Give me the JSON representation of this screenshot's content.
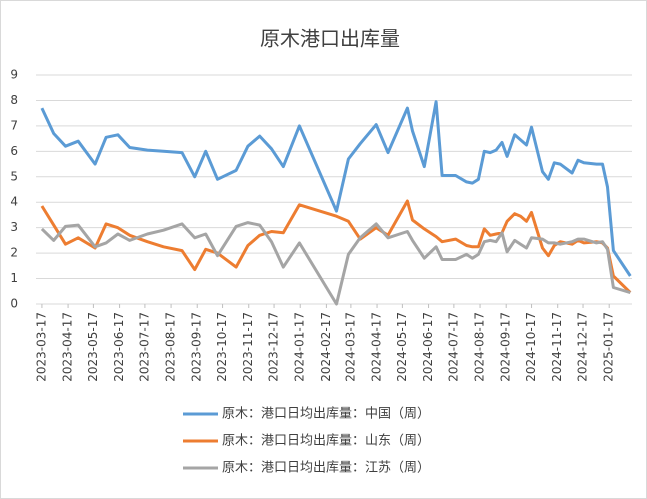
{
  "chart_data": {
    "type": "line",
    "title": "原木港口出库量",
    "x": [
      "2023-03-17",
      "2023-03-31",
      "2023-04-14",
      "2023-04-29",
      "2023-05-19",
      "2023-06-01",
      "2023-06-15",
      "2023-06-29",
      "2023-07-20",
      "2023-08-08",
      "2023-08-30",
      "2023-09-14",
      "2023-09-27",
      "2023-10-11",
      "2023-11-02",
      "2023-11-16",
      "2023-11-30",
      "2023-12-14",
      "2023-12-28",
      "2024-01-16",
      "2024-02-29",
      "2024-03-14",
      "2024-03-28",
      "2024-04-16",
      "2024-04-30",
      "2024-05-23",
      "2024-05-29",
      "2024-06-12",
      "2024-06-26",
      "2024-07-03",
      "2024-07-19",
      "2024-08-01",
      "2024-08-08",
      "2024-08-15",
      "2024-08-22",
      "2024-08-29",
      "2024-09-05",
      "2024-09-12",
      "2024-09-18",
      "2024-09-27",
      "2024-10-04",
      "2024-10-11",
      "2024-10-17",
      "2024-10-30",
      "2024-11-06",
      "2024-11-13",
      "2024-11-20",
      "2024-12-04",
      "2024-12-11",
      "2024-12-18",
      "2025-01-02",
      "2025-01-09",
      "2025-01-15",
      "2025-01-22",
      "2025-02-11"
    ],
    "series": [
      {
        "name": "原木：港口日均出库量：中国（周）",
        "color": "#5b9bd5",
        "values": [
          7.7,
          6.7,
          6.2,
          6.4,
          5.5,
          6.55,
          6.65,
          6.15,
          6.05,
          6.0,
          5.95,
          5.0,
          6.0,
          4.9,
          5.25,
          6.2,
          6.6,
          6.1,
          5.4,
          7.0,
          3.65,
          5.7,
          6.3,
          7.05,
          5.95,
          7.7,
          6.8,
          5.4,
          7.95,
          5.05,
          5.05,
          4.8,
          4.75,
          4.9,
          6.0,
          5.95,
          6.05,
          6.35,
          5.8,
          6.65,
          6.45,
          6.25,
          6.95,
          5.2,
          4.9,
          5.55,
          5.5,
          5.15,
          5.65,
          5.55,
          5.5,
          5.5,
          4.6,
          2.1,
          1.1
        ]
      },
      {
        "name": "原木：港口日均出库量：山东（周）",
        "color": "#ed7d31",
        "values": [
          3.85,
          3.1,
          2.35,
          2.6,
          2.2,
          3.15,
          3.0,
          2.7,
          2.45,
          2.25,
          2.1,
          1.35,
          2.15,
          2.0,
          1.45,
          2.3,
          2.7,
          2.85,
          2.8,
          3.9,
          3.45,
          3.25,
          2.55,
          3.0,
          2.7,
          4.05,
          3.3,
          2.95,
          2.65,
          2.45,
          2.55,
          2.3,
          2.25,
          2.25,
          2.95,
          2.7,
          2.75,
          2.8,
          3.25,
          3.55,
          3.45,
          3.25,
          3.6,
          2.2,
          1.9,
          2.3,
          2.45,
          2.35,
          2.5,
          2.4,
          2.45,
          2.4,
          2.2,
          1.1,
          0.45
        ]
      },
      {
        "name": "原木：港口日均出库量：江苏（周）",
        "color": "#a5a5a5",
        "values": [
          2.95,
          2.5,
          3.05,
          3.1,
          2.25,
          2.4,
          2.75,
          2.5,
          2.75,
          2.9,
          3.15,
          2.6,
          2.75,
          1.9,
          3.05,
          3.2,
          3.1,
          2.45,
          1.45,
          2.4,
          0,
          1.95,
          2.6,
          3.15,
          2.6,
          2.85,
          2.5,
          1.8,
          2.25,
          1.75,
          1.75,
          1.95,
          1.8,
          1.95,
          2.45,
          2.5,
          2.45,
          2.8,
          2.05,
          2.5,
          2.35,
          2.2,
          2.6,
          2.55,
          2.4,
          2.4,
          2.35,
          2.45,
          2.55,
          2.55,
          2.4,
          2.45,
          2.15,
          0.65,
          0.45
        ]
      }
    ],
    "xlim": [
      "2023-03-10",
      "2025-02-13"
    ],
    "xticks": [
      "2023-03-17",
      "2023-04-17",
      "2023-05-17",
      "2023-06-17",
      "2023-07-17",
      "2023-08-17",
      "2023-09-17",
      "2023-10-17",
      "2023-11-17",
      "2023-12-17",
      "2024-01-17",
      "2024-02-17",
      "2024-03-17",
      "2024-04-17",
      "2024-05-17",
      "2024-06-17",
      "2024-07-17",
      "2024-08-17",
      "2024-09-17",
      "2024-10-17",
      "2024-11-17",
      "2024-12-17",
      "2025-01-17"
    ],
    "ylim": [
      0,
      9
    ],
    "yticks": [
      0,
      1,
      2,
      3,
      4,
      5,
      6,
      7,
      8,
      9
    ],
    "grid": true
  }
}
